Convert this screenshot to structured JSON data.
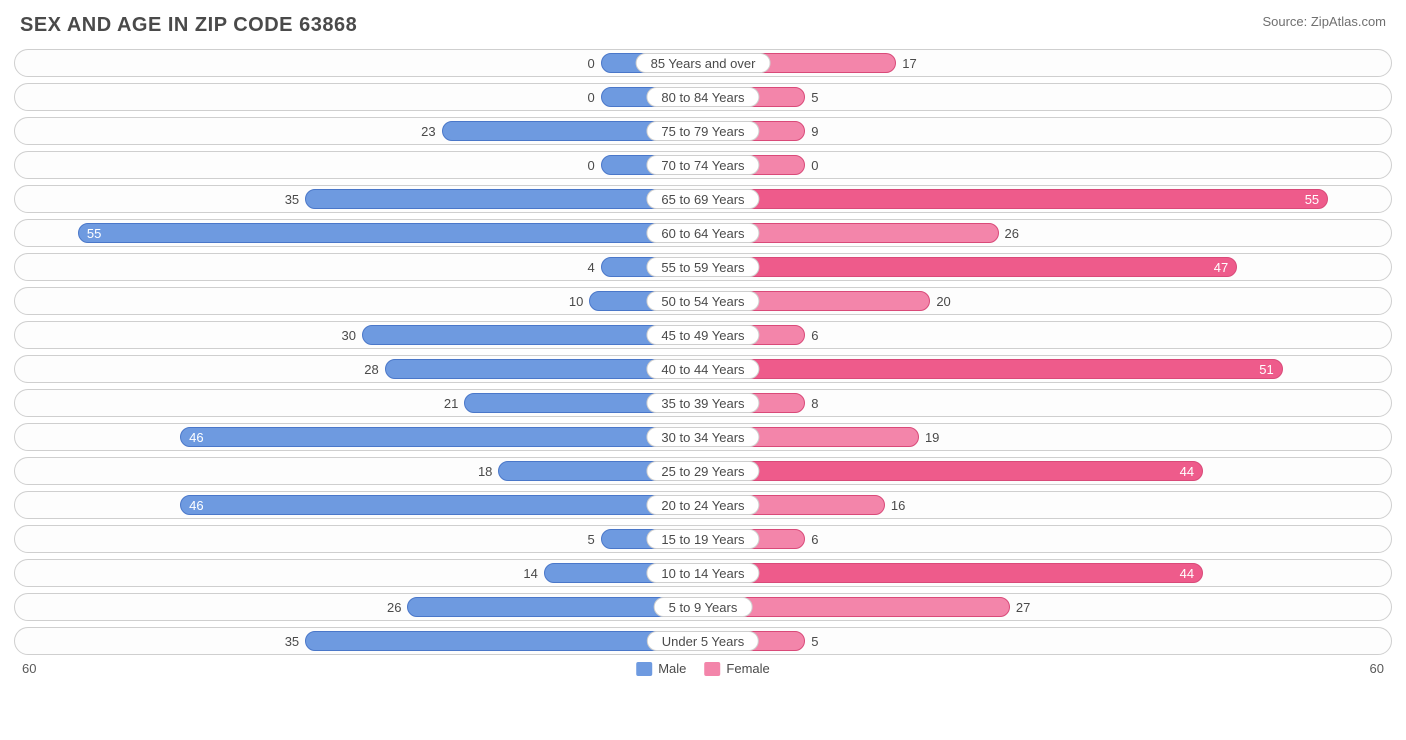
{
  "title": "SEX AND AGE IN ZIP CODE 63868",
  "source": "Source: ZipAtlas.com",
  "chart": {
    "type": "diverging-bar",
    "axis_max": 60,
    "axis_label_left": "60",
    "axis_label_right": "60",
    "min_bar_width_pct": 15,
    "value_inside_threshold_pct": 70,
    "colors": {
      "male_fill": "#6e9ae0",
      "male_border": "#4a77c9",
      "female_fill": "#f385aa",
      "female_border": "#d94a79",
      "highlight_female_fill": "#ee5b8b",
      "row_border": "#cfcfcf",
      "background": "#ffffff",
      "text": "#4a4a4a"
    },
    "legend": [
      {
        "label": "Male",
        "color": "#6e9ae0"
      },
      {
        "label": "Female",
        "color": "#f385aa"
      }
    ],
    "rows": [
      {
        "category": "85 Years and over",
        "male": 0,
        "female": 17,
        "female_highlight": false
      },
      {
        "category": "80 to 84 Years",
        "male": 0,
        "female": 5,
        "female_highlight": false
      },
      {
        "category": "75 to 79 Years",
        "male": 23,
        "female": 9,
        "female_highlight": false
      },
      {
        "category": "70 to 74 Years",
        "male": 0,
        "female": 0,
        "female_highlight": false
      },
      {
        "category": "65 to 69 Years",
        "male": 35,
        "female": 55,
        "female_highlight": true
      },
      {
        "category": "60 to 64 Years",
        "male": 55,
        "female": 26,
        "female_highlight": false
      },
      {
        "category": "55 to 59 Years",
        "male": 4,
        "female": 47,
        "female_highlight": true
      },
      {
        "category": "50 to 54 Years",
        "male": 10,
        "female": 20,
        "female_highlight": false
      },
      {
        "category": "45 to 49 Years",
        "male": 30,
        "female": 6,
        "female_highlight": false
      },
      {
        "category": "40 to 44 Years",
        "male": 28,
        "female": 51,
        "female_highlight": true
      },
      {
        "category": "35 to 39 Years",
        "male": 21,
        "female": 8,
        "female_highlight": false
      },
      {
        "category": "30 to 34 Years",
        "male": 46,
        "female": 19,
        "female_highlight": false
      },
      {
        "category": "25 to 29 Years",
        "male": 18,
        "female": 44,
        "female_highlight": true
      },
      {
        "category": "20 to 24 Years",
        "male": 46,
        "female": 16,
        "female_highlight": false
      },
      {
        "category": "15 to 19 Years",
        "male": 5,
        "female": 6,
        "female_highlight": false
      },
      {
        "category": "10 to 14 Years",
        "male": 14,
        "female": 44,
        "female_highlight": true
      },
      {
        "category": "5 to 9 Years",
        "male": 26,
        "female": 27,
        "female_highlight": false
      },
      {
        "category": "Under 5 Years",
        "male": 35,
        "female": 5,
        "female_highlight": false
      }
    ]
  }
}
